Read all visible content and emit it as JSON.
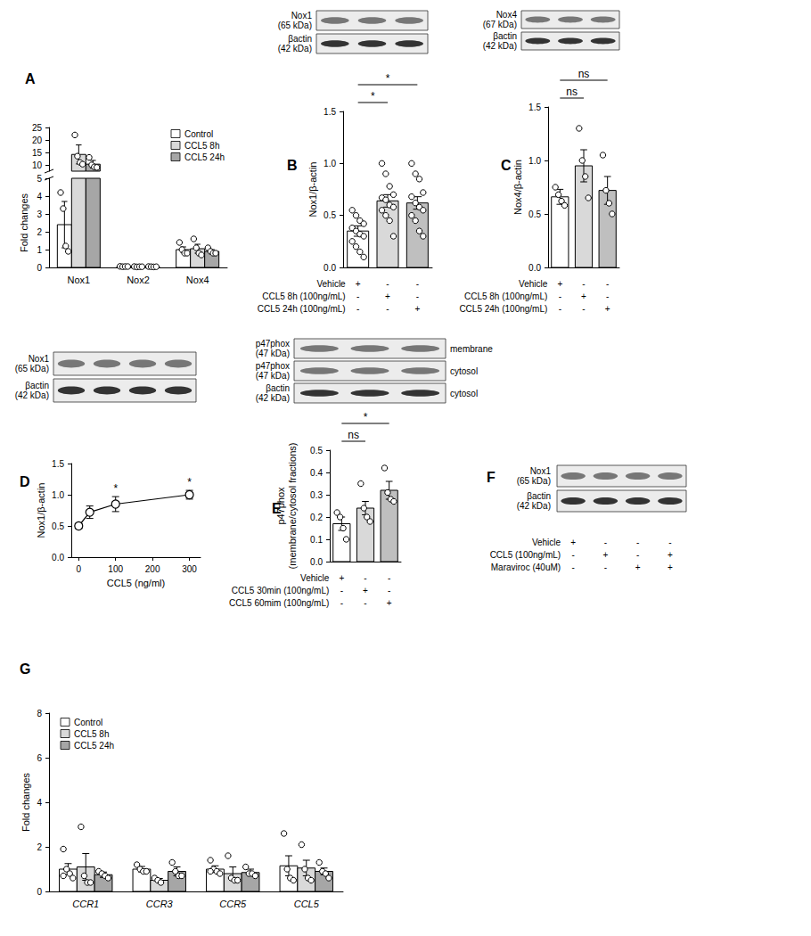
{
  "chart_data": [
    {
      "panel": "A",
      "type": "bar",
      "ylabel": "Fold changes",
      "categories": [
        "Nox1",
        "Nox2",
        "Nox4"
      ],
      "ylim": [
        0,
        25
      ],
      "yticks": [
        0,
        1,
        2,
        3,
        4,
        5,
        10,
        15,
        20,
        25
      ],
      "y_break": [
        5,
        7.5
      ],
      "series": [
        {
          "name": "Control",
          "color": "#ffffff",
          "values": [
            2.4,
            0.05,
            1.0
          ],
          "errors": [
            1.3,
            0.01,
            0.15
          ],
          "points": [
            [
              4.2,
              3.3,
              1.2,
              0.9
            ],
            [
              0.06,
              0.04,
              0.05,
              0.05
            ],
            [
              1.4,
              1.0,
              0.8,
              0.8
            ]
          ]
        },
        {
          "name": "CCL5 8h",
          "color": "#d9d9d9",
          "values": [
            14.2,
            0.04,
            1.05
          ],
          "errors": [
            3.8,
            0.01,
            0.25
          ],
          "points": [
            [
              22.0,
              13.5,
              11.0,
              10.3
            ],
            [
              0.05,
              0.03,
              0.04,
              0.04
            ],
            [
              1.6,
              1.1,
              0.8,
              0.7
            ]
          ]
        },
        {
          "name": "CCL5 24h",
          "color": "#a6a6a6",
          "values": [
            10.3,
            0.04,
            0.9
          ],
          "errors": [
            1.5,
            0.01,
            0.1
          ],
          "points": [
            [
              13.0,
              10.0,
              9.2,
              9.0
            ],
            [
              0.05,
              0.04,
              0.03,
              0.04
            ],
            [
              1.1,
              0.9,
              0.8,
              0.8
            ]
          ]
        }
      ]
    },
    {
      "panel": "B",
      "type": "bar",
      "ylabel": "Nox1/β-actin",
      "categories": [
        null,
        null,
        null
      ],
      "ylim": [
        0,
        1.5
      ],
      "yticks": [
        {
          "value": 0,
          "label": "0.0"
        },
        0.5,
        {
          "value": 1,
          "label": "1.0"
        },
        1.5
      ],
      "colors": [
        "#ffffff",
        "#d9d9d9",
        "#bfbfbf"
      ],
      "values": [
        0.35,
        0.64,
        0.62
      ],
      "errors": [
        0.05,
        0.06,
        0.06
      ],
      "points": [
        [
          0.55,
          0.5,
          0.45,
          0.42,
          0.38,
          0.35,
          0.32,
          0.3,
          0.25,
          0.2,
          0.15,
          0.1
        ],
        [
          1.0,
          0.9,
          0.78,
          0.7,
          0.67,
          0.65,
          0.6,
          0.58,
          0.55,
          0.5,
          0.45,
          0.3
        ],
        [
          1.0,
          0.9,
          0.85,
          0.72,
          0.68,
          0.62,
          0.58,
          0.55,
          0.5,
          0.45,
          0.35,
          0.3
        ]
      ],
      "annotations": [
        {
          "from": 0,
          "to": 1,
          "text": "*"
        },
        {
          "from": 0,
          "to": 2,
          "text": "*"
        }
      ],
      "treatments": [
        {
          "label": "Vehicle",
          "signs": [
            "+",
            "-",
            "-"
          ]
        },
        {
          "label": "CCL5 8h (100ng/mL)",
          "signs": [
            "-",
            "+",
            "-"
          ]
        },
        {
          "label": "CCL5 24h (100ng/mL)",
          "signs": [
            "-",
            "-",
            "+"
          ]
        }
      ],
      "blot": [
        {
          "label": "Nox1\n(65 kDa)"
        },
        {
          "label": "βactin\n(42 kDa)"
        }
      ]
    },
    {
      "panel": "C",
      "type": "bar",
      "ylabel": "Nox4/β-actin",
      "categories": [
        null,
        null,
        null
      ],
      "ylim": [
        0,
        1.5
      ],
      "yticks": [
        {
          "value": 0,
          "label": "0.0"
        },
        0.5,
        {
          "value": 1,
          "label": "1.0"
        },
        1.5
      ],
      "colors": [
        "#ffffff",
        "#d9d9d9",
        "#bfbfbf"
      ],
      "values": [
        0.66,
        0.95,
        0.72
      ],
      "errors": [
        0.07,
        0.15,
        0.13
      ],
      "points": [
        [
          0.75,
          0.68,
          0.62,
          0.58
        ],
        [
          1.3,
          1.0,
          0.85,
          0.65
        ],
        [
          1.05,
          0.72,
          0.6,
          0.5
        ]
      ],
      "annotations": [
        {
          "from": 0,
          "to": 1,
          "text": "ns"
        },
        {
          "from": 0,
          "to": 2,
          "text": "ns"
        }
      ],
      "treatments": [
        {
          "label": "Vehicle",
          "signs": [
            "+",
            "-",
            "-"
          ]
        },
        {
          "label": "CCL5 8h (100ng/mL)",
          "signs": [
            "-",
            "+",
            "-"
          ]
        },
        {
          "label": "CCL5 24h (100ng/mL)",
          "signs": [
            "-",
            "-",
            "+"
          ]
        }
      ],
      "blot": [
        {
          "label": "Nox4\n(67 kDa)"
        },
        {
          "label": "βactin\n(42 kDa)"
        }
      ]
    },
    {
      "panel": "D",
      "type": "line",
      "xlabel": "CCL5 (ng/ml)",
      "ylabel": "Nox1/β-actin",
      "x": [
        0,
        30,
        100,
        300
      ],
      "values": [
        0.5,
        0.72,
        0.85,
        1.0
      ],
      "errors": [
        0.04,
        0.1,
        0.12,
        0.07
      ],
      "xlim": [
        -20,
        330
      ],
      "xticks": [
        0,
        100,
        200,
        300
      ],
      "ylim": [
        0,
        1.5
      ],
      "yticks": [
        {
          "value": 0,
          "label": "0.0"
        },
        0.5,
        {
          "value": 1,
          "label": "1.0"
        },
        1.5
      ],
      "annotations": [
        {
          "x": 100,
          "text": "*"
        },
        {
          "x": 300,
          "text": "*"
        }
      ],
      "blot": [
        {
          "label": "Nox1\n(65 kDa)"
        },
        {
          "label": "βactin\n(42 kDa)"
        }
      ]
    },
    {
      "panel": "E",
      "type": "bar",
      "ylabel": "p47phox\n(membrane/cytosol fractions)",
      "categories": [
        null,
        null,
        null
      ],
      "ylim": [
        0,
        0.5
      ],
      "yticks": [
        {
          "value": 0,
          "label": "0.0"
        },
        0.1,
        0.2,
        0.3,
        0.4,
        0.5
      ],
      "colors": [
        "#ffffff",
        "#d9d9d9",
        "#bfbfbf"
      ],
      "values": [
        0.17,
        0.24,
        0.32
      ],
      "errors": [
        0.03,
        0.03,
        0.04
      ],
      "points": [
        [
          0.22,
          0.2,
          0.15,
          0.1
        ],
        [
          0.35,
          0.24,
          0.2,
          0.18
        ],
        [
          0.42,
          0.31,
          0.28,
          0.27
        ]
      ],
      "annotations": [
        {
          "from": 0,
          "to": 1,
          "text": "ns"
        },
        {
          "from": 0,
          "to": 2,
          "text": "*"
        }
      ],
      "treatments": [
        {
          "label": "Vehicle",
          "signs": [
            "+",
            "-",
            "-"
          ]
        },
        {
          "label": "CCL5 30min (100ng/mL)",
          "signs": [
            "-",
            "+",
            "-"
          ]
        },
        {
          "label": "CCL5 60mim (100ng/mL)",
          "signs": [
            "-",
            "-",
            "+"
          ]
        }
      ],
      "blot": [
        {
          "label": "p47phox\n(47 kDa)",
          "side": "membrane"
        },
        {
          "label": "p47phox\n(47 kDa)",
          "side": "cytosol"
        },
        {
          "label": "βactin\n(42 kDa)",
          "side": "cytosol"
        }
      ]
    },
    {
      "panel": "F",
      "type": "blot",
      "treatments": [
        {
          "label": "Vehicle",
          "signs": [
            "+",
            "-",
            "-",
            "-"
          ]
        },
        {
          "label": "CCL5 (100ng/mL)",
          "signs": [
            "-",
            "+",
            "-",
            "+"
          ]
        },
        {
          "label": "Maraviroc (40uM)",
          "signs": [
            "-",
            "-",
            "+",
            "+"
          ]
        }
      ],
      "blot": [
        {
          "label": "Nox1\n(65 kDa)"
        },
        {
          "label": "βactin\n(42 kDa)"
        }
      ]
    },
    {
      "panel": "G",
      "type": "bar",
      "ylabel": "Fold changes",
      "categories": [
        "CCR1",
        "CCR3",
        "CCR5",
        "CCL5"
      ],
      "ylim": [
        0,
        8
      ],
      "yticks": [
        0,
        2,
        4,
        6,
        8
      ],
      "series": [
        {
          "name": "Control",
          "color": "#ffffff",
          "values": [
            1.0,
            1.0,
            1.0,
            1.15
          ],
          "errors": [
            0.25,
            0.12,
            0.15,
            0.45
          ],
          "points": [
            [
              1.9,
              1.0,
              0.8,
              0.6,
              0.7
            ],
            [
              1.2,
              1.0,
              0.9,
              0.9
            ],
            [
              1.4,
              1.0,
              0.9,
              0.8,
              0.9
            ],
            [
              2.6,
              1.0,
              0.6,
              0.5
            ]
          ]
        },
        {
          "name": "CCL5 8h",
          "color": "#d9d9d9",
          "values": [
            1.1,
            0.5,
            0.8,
            1.05
          ],
          "errors": [
            0.6,
            0.08,
            0.3,
            0.35
          ],
          "points": [
            [
              2.9,
              0.7,
              0.4,
              0.4
            ],
            [
              0.6,
              0.5,
              0.4
            ],
            [
              1.6,
              0.6,
              0.5,
              0.5
            ],
            [
              2.1,
              1.0,
              0.6,
              0.5
            ]
          ]
        },
        {
          "name": "CCL5 24h",
          "color": "#a6a6a6",
          "values": [
            0.75,
            0.9,
            0.85,
            0.9
          ],
          "errors": [
            0.12,
            0.2,
            0.15,
            0.15
          ],
          "points": [
            [
              0.9,
              0.8,
              0.7,
              0.6
            ],
            [
              1.3,
              0.9,
              0.7,
              0.7
            ],
            [
              1.1,
              0.8,
              0.8,
              0.7
            ],
            [
              1.3,
              0.9,
              0.8,
              0.6
            ]
          ]
        }
      ]
    }
  ]
}
